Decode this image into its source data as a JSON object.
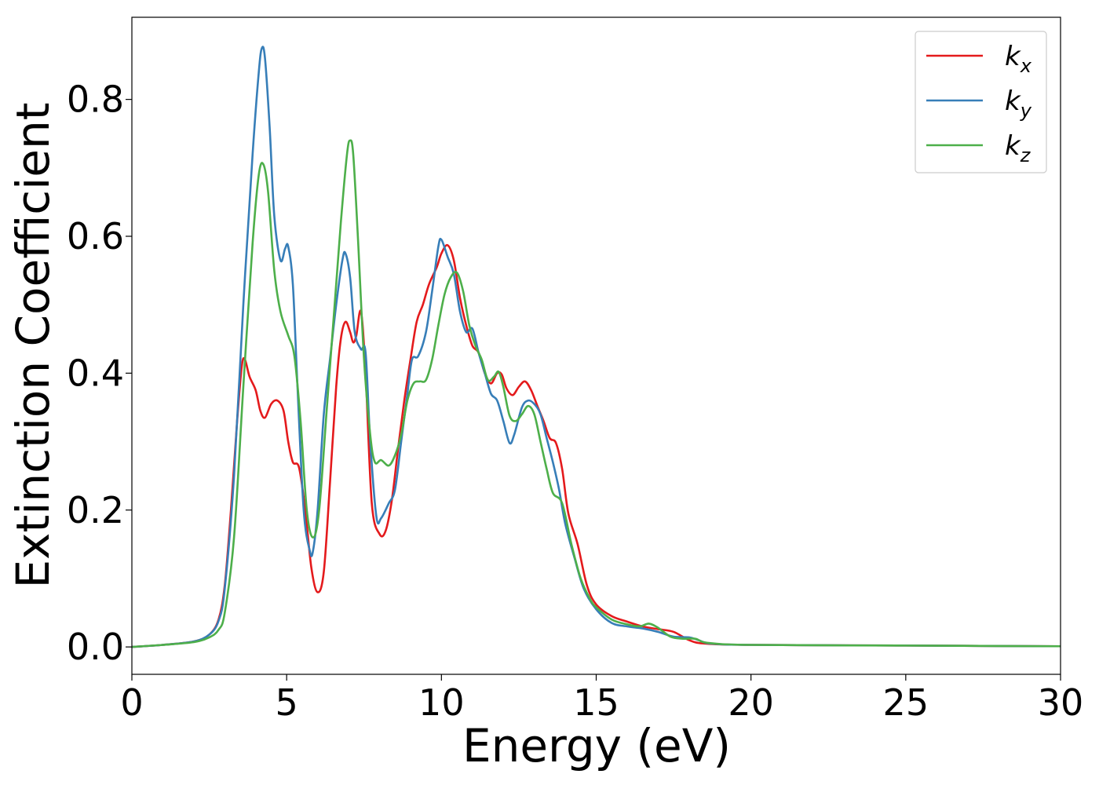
{
  "chart_data": {
    "type": "line",
    "title": "",
    "xlabel": "Energy (eV)",
    "ylabel": "Extinction Coefficient",
    "xlim": [
      0,
      30
    ],
    "ylim": [
      -0.04,
      0.92
    ],
    "xticks": [
      0,
      5,
      10,
      15,
      20,
      25,
      30
    ],
    "xtick_labels": [
      "0",
      "5",
      "10",
      "15",
      "20",
      "25",
      "30"
    ],
    "yticks": [
      0.0,
      0.2,
      0.4,
      0.6,
      0.8
    ],
    "ytick_labels": [
      "0.0",
      "0.2",
      "0.4",
      "0.6",
      "0.8"
    ],
    "grid": false,
    "legend_position": "top-right",
    "series": [
      {
        "name": "k_x",
        "label_main": "k",
        "label_sub": "x",
        "color": "#e41a1c",
        "points": [
          [
            0,
            0.0
          ],
          [
            1,
            0.003
          ],
          [
            2,
            0.008
          ],
          [
            2.5,
            0.018
          ],
          [
            2.8,
            0.04
          ],
          [
            3.0,
            0.09
          ],
          [
            3.2,
            0.2
          ],
          [
            3.4,
            0.33
          ],
          [
            3.55,
            0.41
          ],
          [
            3.65,
            0.42
          ],
          [
            3.8,
            0.395
          ],
          [
            4.0,
            0.375
          ],
          [
            4.15,
            0.345
          ],
          [
            4.3,
            0.335
          ],
          [
            4.5,
            0.355
          ],
          [
            4.7,
            0.36
          ],
          [
            4.9,
            0.345
          ],
          [
            5.05,
            0.3
          ],
          [
            5.2,
            0.27
          ],
          [
            5.4,
            0.262
          ],
          [
            5.6,
            0.2
          ],
          [
            5.8,
            0.115
          ],
          [
            6.0,
            0.08
          ],
          [
            6.2,
            0.11
          ],
          [
            6.4,
            0.24
          ],
          [
            6.6,
            0.38
          ],
          [
            6.75,
            0.45
          ],
          [
            6.9,
            0.475
          ],
          [
            7.05,
            0.46
          ],
          [
            7.15,
            0.445
          ],
          [
            7.25,
            0.455
          ],
          [
            7.4,
            0.49
          ],
          [
            7.55,
            0.4
          ],
          [
            7.75,
            0.21
          ],
          [
            8.0,
            0.165
          ],
          [
            8.2,
            0.17
          ],
          [
            8.4,
            0.215
          ],
          [
            8.6,
            0.29
          ],
          [
            8.8,
            0.36
          ],
          [
            9.0,
            0.42
          ],
          [
            9.2,
            0.475
          ],
          [
            9.4,
            0.5
          ],
          [
            9.6,
            0.53
          ],
          [
            9.85,
            0.555
          ],
          [
            10.0,
            0.575
          ],
          [
            10.2,
            0.587
          ],
          [
            10.4,
            0.565
          ],
          [
            10.6,
            0.51
          ],
          [
            10.8,
            0.47
          ],
          [
            11.0,
            0.44
          ],
          [
            11.2,
            0.43
          ],
          [
            11.4,
            0.4
          ],
          [
            11.6,
            0.385
          ],
          [
            11.8,
            0.4
          ],
          [
            11.95,
            0.398
          ],
          [
            12.1,
            0.378
          ],
          [
            12.3,
            0.368
          ],
          [
            12.5,
            0.38
          ],
          [
            12.7,
            0.388
          ],
          [
            12.9,
            0.375
          ],
          [
            13.1,
            0.352
          ],
          [
            13.3,
            0.33
          ],
          [
            13.5,
            0.305
          ],
          [
            13.7,
            0.298
          ],
          [
            13.9,
            0.26
          ],
          [
            14.1,
            0.195
          ],
          [
            14.4,
            0.15
          ],
          [
            14.7,
            0.09
          ],
          [
            15.0,
            0.062
          ],
          [
            15.5,
            0.045
          ],
          [
            16.0,
            0.037
          ],
          [
            16.5,
            0.03
          ],
          [
            17.0,
            0.026
          ],
          [
            17.5,
            0.022
          ],
          [
            18.0,
            0.01
          ],
          [
            18.5,
            0.005
          ],
          [
            20,
            0.003
          ],
          [
            25,
            0.002
          ],
          [
            30,
            0.001
          ]
        ]
      },
      {
        "name": "k_y",
        "label_main": "k",
        "label_sub": "y",
        "color": "#377eb8",
        "points": [
          [
            0,
            0.0
          ],
          [
            1,
            0.003
          ],
          [
            2,
            0.008
          ],
          [
            2.5,
            0.018
          ],
          [
            2.8,
            0.038
          ],
          [
            3.0,
            0.085
          ],
          [
            3.3,
            0.25
          ],
          [
            3.6,
            0.5
          ],
          [
            3.9,
            0.72
          ],
          [
            4.1,
            0.84
          ],
          [
            4.2,
            0.875
          ],
          [
            4.3,
            0.86
          ],
          [
            4.45,
            0.76
          ],
          [
            4.6,
            0.63
          ],
          [
            4.8,
            0.565
          ],
          [
            4.95,
            0.582
          ],
          [
            5.05,
            0.585
          ],
          [
            5.2,
            0.53
          ],
          [
            5.35,
            0.38
          ],
          [
            5.55,
            0.2
          ],
          [
            5.75,
            0.14
          ],
          [
            5.85,
            0.14
          ],
          [
            6.0,
            0.2
          ],
          [
            6.2,
            0.34
          ],
          [
            6.4,
            0.42
          ],
          [
            6.6,
            0.5
          ],
          [
            6.8,
            0.565
          ],
          [
            6.9,
            0.575
          ],
          [
            7.05,
            0.54
          ],
          [
            7.2,
            0.46
          ],
          [
            7.4,
            0.435
          ],
          [
            7.55,
            0.43
          ],
          [
            7.7,
            0.3
          ],
          [
            7.9,
            0.19
          ],
          [
            8.05,
            0.188
          ],
          [
            8.3,
            0.21
          ],
          [
            8.5,
            0.23
          ],
          [
            8.7,
            0.3
          ],
          [
            8.9,
            0.37
          ],
          [
            9.05,
            0.42
          ],
          [
            9.25,
            0.425
          ],
          [
            9.5,
            0.46
          ],
          [
            9.7,
            0.52
          ],
          [
            9.9,
            0.585
          ],
          [
            10.0,
            0.595
          ],
          [
            10.2,
            0.57
          ],
          [
            10.4,
            0.545
          ],
          [
            10.6,
            0.49
          ],
          [
            10.8,
            0.46
          ],
          [
            11.0,
            0.465
          ],
          [
            11.2,
            0.43
          ],
          [
            11.4,
            0.4
          ],
          [
            11.6,
            0.37
          ],
          [
            11.8,
            0.36
          ],
          [
            12.0,
            0.33
          ],
          [
            12.2,
            0.298
          ],
          [
            12.35,
            0.31
          ],
          [
            12.6,
            0.35
          ],
          [
            12.8,
            0.36
          ],
          [
            13.0,
            0.355
          ],
          [
            13.2,
            0.34
          ],
          [
            13.4,
            0.305
          ],
          [
            13.6,
            0.27
          ],
          [
            13.8,
            0.23
          ],
          [
            14.0,
            0.18
          ],
          [
            14.3,
            0.13
          ],
          [
            14.6,
            0.085
          ],
          [
            15.0,
            0.055
          ],
          [
            15.5,
            0.035
          ],
          [
            16.0,
            0.03
          ],
          [
            16.5,
            0.027
          ],
          [
            17.0,
            0.022
          ],
          [
            17.5,
            0.015
          ],
          [
            18.0,
            0.014
          ],
          [
            18.3,
            0.01
          ],
          [
            18.7,
            0.005
          ],
          [
            20,
            0.003
          ],
          [
            25,
            0.002
          ],
          [
            30,
            0.001
          ]
        ]
      },
      {
        "name": "k_z",
        "label_main": "k",
        "label_sub": "z",
        "color": "#4daf4a",
        "points": [
          [
            0,
            0.0
          ],
          [
            1,
            0.003
          ],
          [
            2,
            0.007
          ],
          [
            2.5,
            0.014
          ],
          [
            2.8,
            0.025
          ],
          [
            3.0,
            0.05
          ],
          [
            3.3,
            0.16
          ],
          [
            3.6,
            0.38
          ],
          [
            3.9,
            0.59
          ],
          [
            4.1,
            0.69
          ],
          [
            4.25,
            0.705
          ],
          [
            4.4,
            0.665
          ],
          [
            4.6,
            0.55
          ],
          [
            4.8,
            0.49
          ],
          [
            5.05,
            0.455
          ],
          [
            5.25,
            0.425
          ],
          [
            5.45,
            0.33
          ],
          [
            5.65,
            0.2
          ],
          [
            5.85,
            0.16
          ],
          [
            6.05,
            0.2
          ],
          [
            6.3,
            0.35
          ],
          [
            6.55,
            0.5
          ],
          [
            6.75,
            0.62
          ],
          [
            6.95,
            0.72
          ],
          [
            7.05,
            0.74
          ],
          [
            7.15,
            0.72
          ],
          [
            7.3,
            0.6
          ],
          [
            7.5,
            0.42
          ],
          [
            7.7,
            0.31
          ],
          [
            7.85,
            0.27
          ],
          [
            8.05,
            0.273
          ],
          [
            8.3,
            0.265
          ],
          [
            8.5,
            0.28
          ],
          [
            8.7,
            0.31
          ],
          [
            8.9,
            0.36
          ],
          [
            9.1,
            0.385
          ],
          [
            9.3,
            0.388
          ],
          [
            9.5,
            0.39
          ],
          [
            9.7,
            0.42
          ],
          [
            9.9,
            0.47
          ],
          [
            10.1,
            0.515
          ],
          [
            10.3,
            0.54
          ],
          [
            10.5,
            0.547
          ],
          [
            10.7,
            0.52
          ],
          [
            10.9,
            0.47
          ],
          [
            11.1,
            0.44
          ],
          [
            11.3,
            0.42
          ],
          [
            11.5,
            0.39
          ],
          [
            11.7,
            0.395
          ],
          [
            11.85,
            0.402
          ],
          [
            12.0,
            0.38
          ],
          [
            12.2,
            0.338
          ],
          [
            12.4,
            0.33
          ],
          [
            12.6,
            0.34
          ],
          [
            12.8,
            0.352
          ],
          [
            13.0,
            0.34
          ],
          [
            13.2,
            0.3
          ],
          [
            13.4,
            0.26
          ],
          [
            13.6,
            0.225
          ],
          [
            13.9,
            0.21
          ],
          [
            14.2,
            0.15
          ],
          [
            14.5,
            0.1
          ],
          [
            14.8,
            0.07
          ],
          [
            15.0,
            0.058
          ],
          [
            15.5,
            0.04
          ],
          [
            16.0,
            0.033
          ],
          [
            16.4,
            0.03
          ],
          [
            16.7,
            0.034
          ],
          [
            17.0,
            0.028
          ],
          [
            17.4,
            0.015
          ],
          [
            17.8,
            0.012
          ],
          [
            18.2,
            0.012
          ],
          [
            18.6,
            0.006
          ],
          [
            20,
            0.003
          ],
          [
            25,
            0.002
          ],
          [
            30,
            0.001
          ]
        ]
      }
    ]
  }
}
